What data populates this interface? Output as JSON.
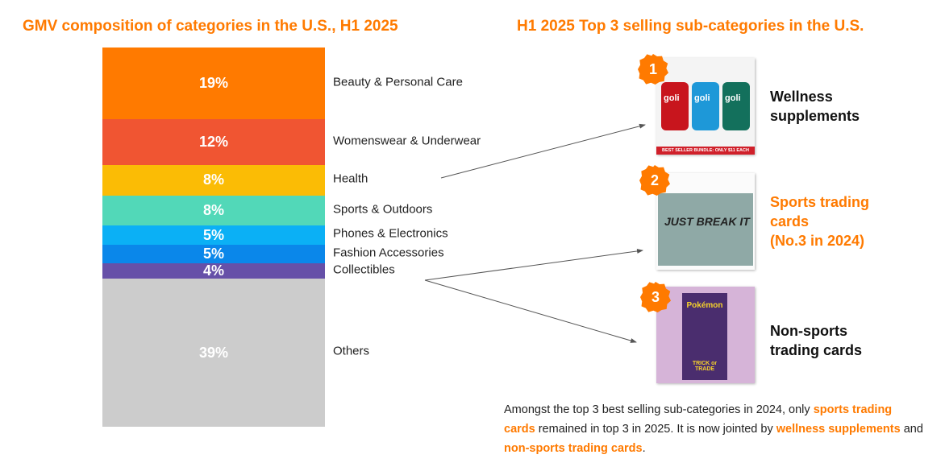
{
  "left_title": "GMV composition of categories in the U.S., H1 2025",
  "right_title": "H1 2025 Top 3 selling sub-categories in the U.S.",
  "chart_data": {
    "type": "bar",
    "stacked": true,
    "title": "GMV composition of categories in the U.S., H1 2025",
    "categories": [
      "Beauty & Personal Care",
      "Womenswear & Underwear",
      "Health",
      "Sports & Outdoors",
      "Phones & Electronics",
      "Fashion Accessories",
      "Collectibles",
      "Others"
    ],
    "values": [
      19,
      12,
      8,
      8,
      5,
      5,
      4,
      39
    ],
    "labels": [
      "19%",
      "12%",
      "8%",
      "8%",
      "5%",
      "5%",
      "4%",
      "39%"
    ],
    "colors": [
      "#ff7a00",
      "#f05532",
      "#fbbc05",
      "#52d8b8",
      "#0bb0f5",
      "#0a87ea",
      "#6650a8",
      "#cccccc"
    ],
    "unit": "%"
  },
  "top3": [
    {
      "rank": "1",
      "name_lines": [
        "Wellness",
        "supplements"
      ],
      "highlight": false,
      "image_text": "BEST SELLER BUNDLE: ONLY $11 EACH",
      "brand": "goli"
    },
    {
      "rank": "2",
      "name_lines": [
        "Sports trading",
        "cards",
        "(No.3 in 2024)"
      ],
      "highlight": true,
      "image_text": "JUST BREAK IT"
    },
    {
      "rank": "3",
      "name_lines": [
        "Non-sports",
        "trading cards"
      ],
      "highlight": false,
      "image_text": "Pokémon",
      "image_text2": "TRICK or TRADE"
    }
  ],
  "note": {
    "p1": "Amongst the top 3 best selling sub-categories in 2024, only ",
    "h1": "sports trading cards",
    "p2": " remained in top 3 in 2025. It is now jointed by ",
    "h2": "wellness supplements",
    "p3": " and ",
    "h3": "non-sports trading cards",
    "p4": "."
  }
}
